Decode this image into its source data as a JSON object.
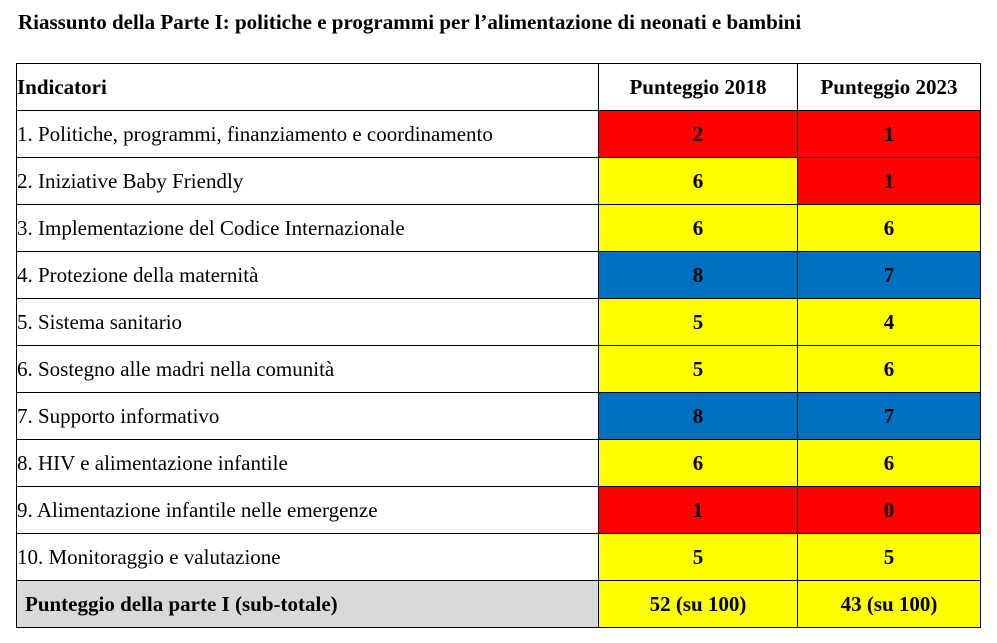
{
  "title": "Riassunto della Parte I: politiche e programmi per l’alimentazione di neonati e bambini",
  "table": {
    "headers": {
      "indicator": "Indicatori",
      "score_2018": "Punteggio 2018",
      "score_2023": "Punteggio 2023"
    },
    "rows": [
      {
        "indicator": "1. Politiche, programmi, finanziamento e coordinamento",
        "score_2018": "2",
        "color_2018": "#ff0000",
        "score_2023": "1",
        "color_2023": "#ff0000"
      },
      {
        "indicator": "2. Iniziative Baby Friendly",
        "score_2018": "6",
        "color_2018": "#ffff00",
        "score_2023": "1",
        "color_2023": "#ff0000"
      },
      {
        "indicator": "3. Implementazione del Codice Internazionale",
        "score_2018": "6",
        "color_2018": "#ffff00",
        "score_2023": "6",
        "color_2023": "#ffff00"
      },
      {
        "indicator": "4. Protezione della maternità",
        "score_2018": "8",
        "color_2018": "#0070c0",
        "score_2023": "7",
        "color_2023": "#0070c0"
      },
      {
        "indicator": "5. Sistema sanitario",
        "score_2018": "5",
        "color_2018": "#ffff00",
        "score_2023": "4",
        "color_2023": "#ffff00"
      },
      {
        "indicator": "6. Sostegno alle madri nella comunità",
        "score_2018": "5",
        "color_2018": "#ffff00",
        "score_2023": "6",
        "color_2023": "#ffff00"
      },
      {
        "indicator": "7. Supporto informativo",
        "score_2018": "8",
        "color_2018": "#0070c0",
        "score_2023": "7",
        "color_2023": "#0070c0"
      },
      {
        "indicator": "8. HIV e alimentazione infantile",
        "score_2018": "6",
        "color_2018": "#ffff00",
        "score_2023": "6",
        "color_2023": "#ffff00"
      },
      {
        "indicator": "9. Alimentazione infantile nelle emergenze",
        "score_2018": "1",
        "color_2018": "#ff0000",
        "score_2023": "0",
        "color_2023": "#ff0000"
      },
      {
        "indicator": "10. Monitoraggio e valutazione",
        "score_2018": "5",
        "color_2018": "#ffff00",
        "score_2023": "5",
        "color_2023": "#ffff00"
      }
    ],
    "total": {
      "label": "Punteggio della parte I (sub-totale)",
      "score_2018": "52 (su 100)",
      "score_2023": "43 (su 100)"
    }
  }
}
